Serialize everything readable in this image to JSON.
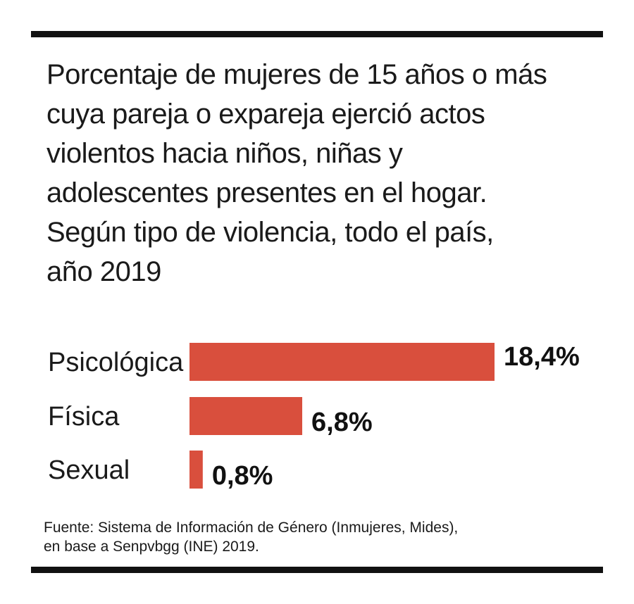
{
  "title": "Porcentaje de mujeres de 15 años o más\ncuya pareja o expareja ejerció actos\nviolentos hacia niños, niñas y\nadolescentes presentes en el hogar.\nSegún tipo de violencia, todo el  país,\naño 2019",
  "source": {
    "line1": "Fuente: Sistema de Información de Género (Inmujeres, Mides),",
    "line2": "en base a Senpvbgg (INE) 2019."
  },
  "colors": {
    "bar": "#d94f3d",
    "rule": "#111111"
  },
  "chart_data": {
    "type": "bar",
    "orientation": "horizontal",
    "categories": [
      "Psicológica",
      "Física",
      "Sexual"
    ],
    "values": [
      18.4,
      6.8,
      0.8
    ],
    "value_labels": [
      "18,4%",
      "6,8%",
      "0,8%"
    ],
    "unit": "%",
    "xlim": [
      0,
      18.4
    ],
    "grid": false,
    "legend": "none",
    "xlabel": "",
    "ylabel": ""
  }
}
